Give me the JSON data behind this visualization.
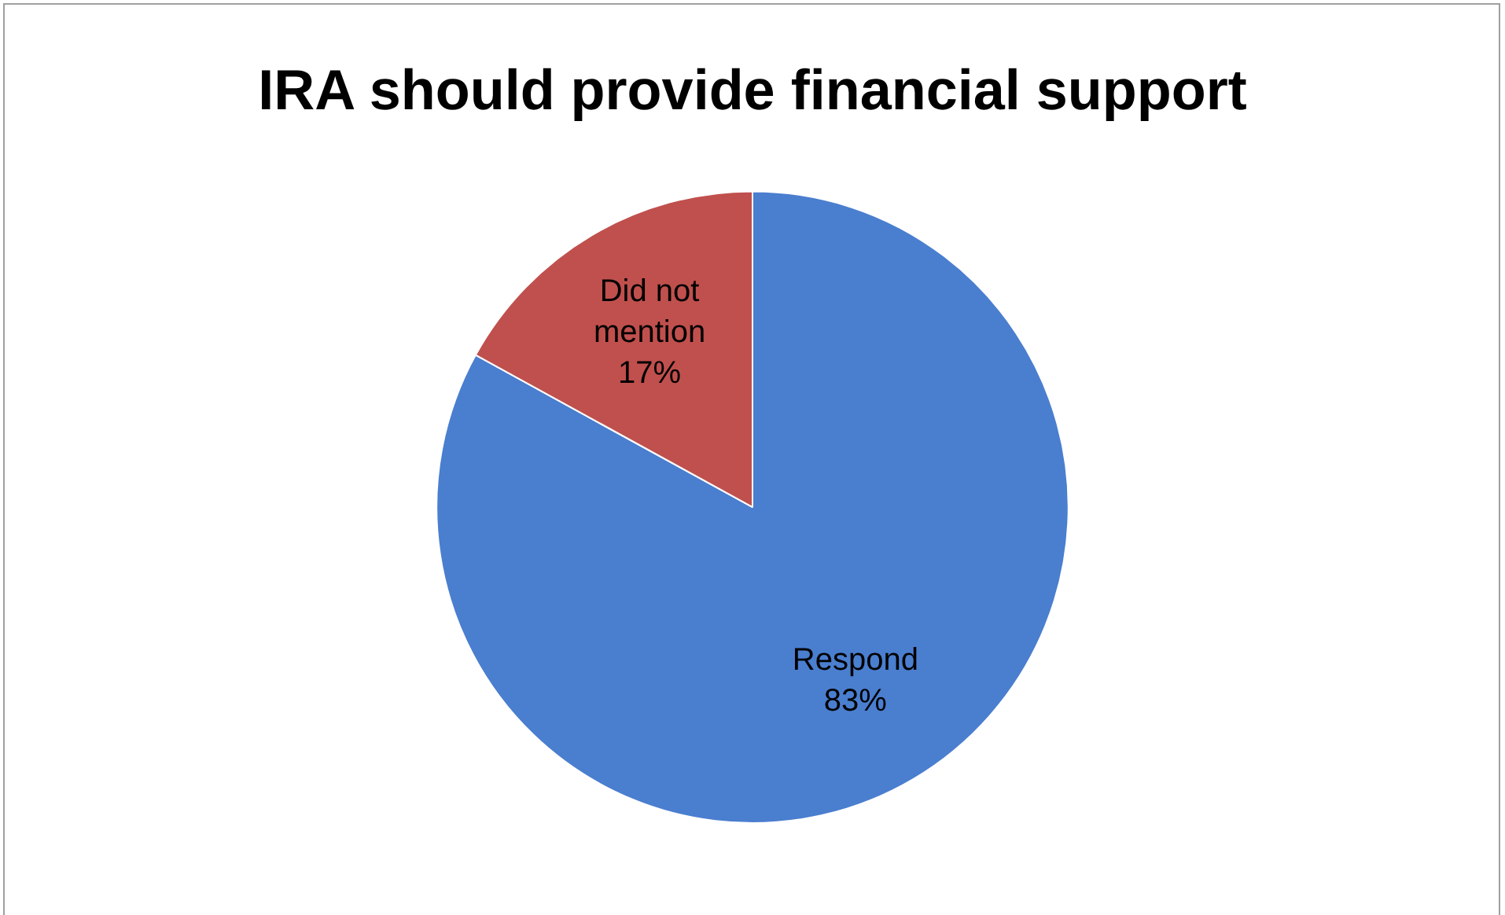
{
  "chart_data": {
    "type": "pie",
    "title": "IRA should provide financial support",
    "categories": [
      "Respond",
      "Did not mention"
    ],
    "values": [
      83,
      17
    ],
    "colors": [
      "#4a7ecf",
      "#c0504d"
    ],
    "value_labels": [
      "83%",
      "17%"
    ],
    "legend": false
  }
}
